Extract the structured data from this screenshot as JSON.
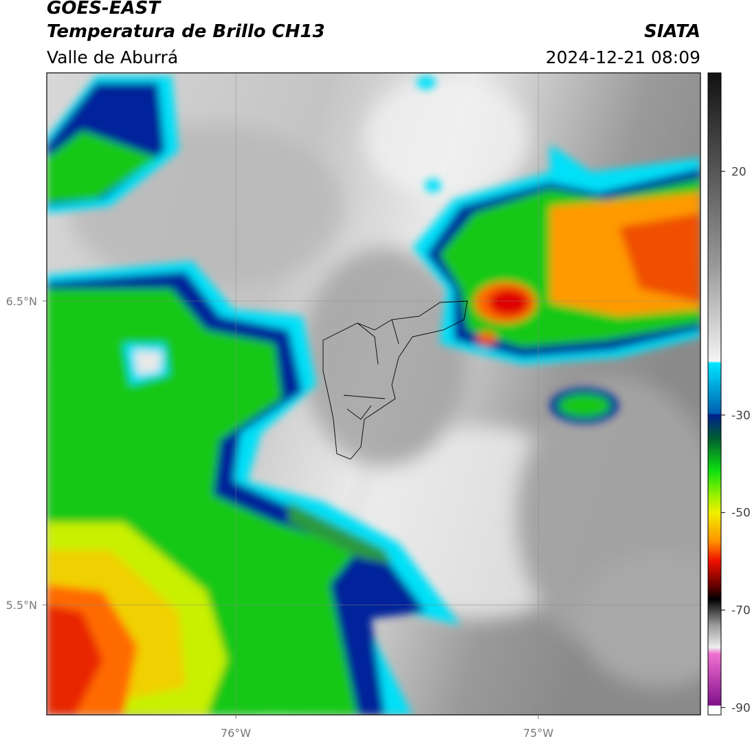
{
  "header": {
    "title": "GOES-EAST",
    "subtitle": "Temperatura de Brillo CH13",
    "region": "Valle de Aburrá",
    "source": "SIATA",
    "datetime": "2024-12-21 08:09"
  },
  "map": {
    "xlim": [
      -76.625,
      -74.464
    ],
    "ylim": [
      5.138,
      7.251
    ],
    "xticks": [
      {
        "value": -76,
        "label": "76°W"
      },
      {
        "value": -75,
        "label": "75°W"
      }
    ],
    "yticks": [
      {
        "value": 6.5,
        "label": "6.5°N"
      },
      {
        "value": 5.5,
        "label": "5.5°N"
      }
    ],
    "grid": true
  },
  "colorbar": {
    "clim": [
      -91.5,
      40.2
    ],
    "ticks": [
      20,
      -30,
      -50,
      -70,
      -90
    ]
  }
}
